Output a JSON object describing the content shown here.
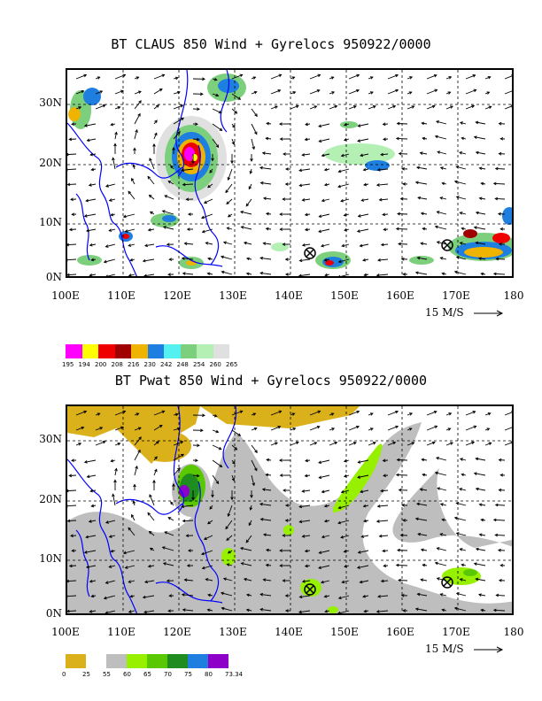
{
  "panel1": {
    "title": "BT CLAUS 850 Wind + Gyrelocs 950922/0000",
    "lat_labels": [
      "30N",
      "20N",
      "10N",
      "0N"
    ],
    "lon_labels": [
      "100E",
      "110E",
      "120E",
      "130E",
      "140E",
      "150E",
      "160E",
      "170E",
      "180"
    ],
    "scale_label": "15 M/S",
    "legend": {
      "colors": [
        "#ff00ff",
        "#ffff00",
        "#ee0000",
        "#a00000",
        "#eeb400",
        "#1e7fe0",
        "#55f0f0",
        "#7ccf7c",
        "#b4f0b4",
        "#e0e0e0"
      ],
      "labels": [
        "195",
        "194",
        "200",
        "208",
        "216",
        "230",
        "242",
        "248",
        "254",
        "260",
        "265"
      ]
    }
  },
  "panel2": {
    "title": "BT Pwat 850 Wind + Gyrelocs 950922/0000",
    "lat_labels": [
      "30N",
      "20N",
      "10N",
      "0N"
    ],
    "lon_labels": [
      "100E",
      "110E",
      "120E",
      "130E",
      "140E",
      "150E",
      "160E",
      "170E",
      "180"
    ],
    "scale_label": "15 M/S",
    "legend": {
      "colors": [
        "#dbb11b",
        "#ffffff",
        "#bebebe",
        "#96f000",
        "#5ac800",
        "#1e8c1e",
        "#1e7fe0",
        "#8c00c8"
      ],
      "labels": [
        "0",
        "25",
        "55",
        "60",
        "65",
        "70",
        "75",
        "80",
        "73.34"
      ]
    }
  },
  "gyrelocs": [
    {
      "lon": 143.5,
      "lat": 4.5
    },
    {
      "lon": 167.5,
      "lat": 5.8
    }
  ]
}
